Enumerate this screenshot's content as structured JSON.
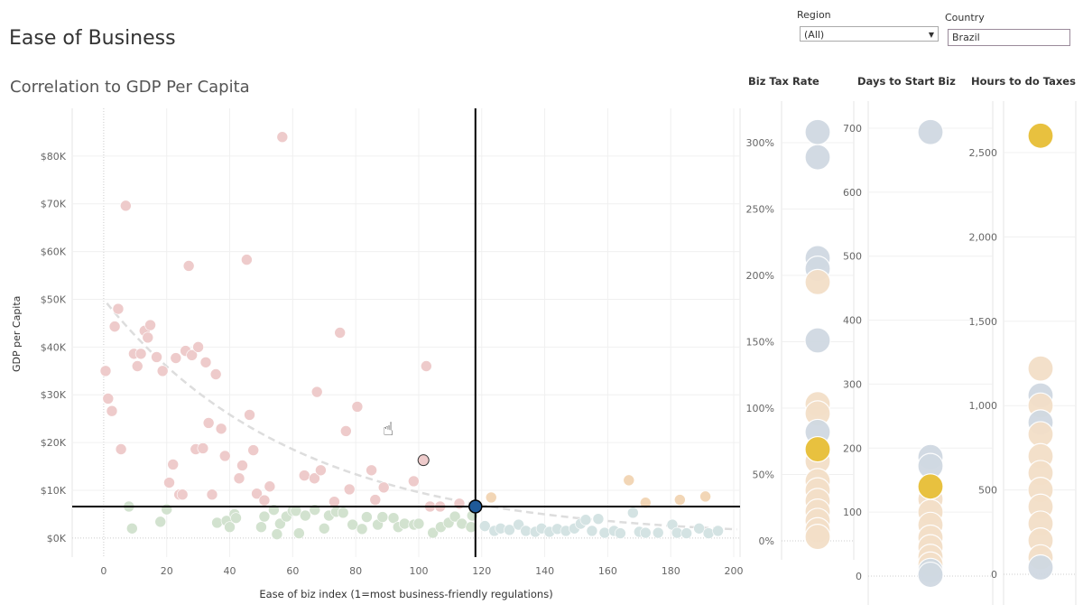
{
  "title": "Ease of Business",
  "subtitle": "Correlation to GDP Per Capita",
  "filters": {
    "region_label": "Region",
    "region_value": "(All)",
    "country_label": "Country",
    "country_value": "Brazil"
  },
  "colors": {
    "pink": "#eecbcb",
    "green": "#d2e2cf",
    "lightblue": "#d4e3e3",
    "beige": "#f3dfc8",
    "bluegray": "#d0d9e2",
    "yellow": "#e8c13f",
    "orange": "#f2d6b6",
    "selected": "#1f5a99"
  },
  "chart_data": [
    {
      "type": "scatter",
      "xlabel": "Ease of biz index (1=most business-friendly regulations)",
      "ylabel": "GDP per Capita",
      "xlim": [
        -10,
        202
      ],
      "ylim": [
        -4,
        90
      ],
      "xticks": [
        "0",
        "20",
        "40",
        "60",
        "80",
        "100",
        "120",
        "140",
        "160",
        "180",
        "200"
      ],
      "yticks": [
        "$0K",
        "$10K",
        "$20K",
        "$30K",
        "$40K",
        "$50K",
        "$60K",
        "$70K",
        "$80K"
      ],
      "grid": true,
      "trend_line": "exponential",
      "reference_lines": {
        "x": 118,
        "y": 6.6
      },
      "highlighted": {
        "country": "Brazil",
        "x": 118,
        "y": 6.6
      },
      "series": [
        {
          "color": "pink",
          "points": [
            [
              0.6,
              35
            ],
            [
              1.4,
              29.2
            ],
            [
              2.6,
              26.6
            ],
            [
              3.5,
              44.3
            ],
            [
              4.6,
              48
            ],
            [
              5.5,
              18.6
            ],
            [
              7,
              69.6
            ],
            [
              9.6,
              38.6
            ],
            [
              10.7,
              36
            ],
            [
              11.8,
              38.6
            ],
            [
              13,
              43.4
            ],
            [
              14,
              42
            ],
            [
              14.8,
              44.6
            ],
            [
              16.8,
              37.9
            ],
            [
              18.7,
              35
            ],
            [
              20.8,
              11.6
            ],
            [
              22,
              15.4
            ],
            [
              22.9,
              37.7
            ],
            [
              24,
              9.1
            ],
            [
              25,
              9.1
            ],
            [
              26,
              39.2
            ],
            [
              27,
              57
            ],
            [
              28,
              38.3
            ],
            [
              29.2,
              18.6
            ],
            [
              30,
              40
            ],
            [
              31.5,
              18.8
            ],
            [
              32.4,
              36.8
            ],
            [
              33.3,
              24.1
            ],
            [
              34.4,
              9.1
            ],
            [
              35.6,
              34.3
            ],
            [
              37.3,
              22.9
            ],
            [
              38.5,
              17.2
            ],
            [
              43,
              12.5
            ],
            [
              44,
              15.2
            ],
            [
              45.4,
              58.3
            ],
            [
              46.3,
              25.8
            ],
            [
              47.5,
              18.4
            ],
            [
              48.6,
              9.3
            ],
            [
              51,
              7.9
            ],
            [
              52.7,
              10.8
            ],
            [
              56.7,
              84
            ],
            [
              63.7,
              13.1
            ],
            [
              66.9,
              12.5
            ],
            [
              67.7,
              30.6
            ],
            [
              68.9,
              14.2
            ],
            [
              73.2,
              7.6
            ],
            [
              75,
              43
            ],
            [
              76.9,
              22.4
            ],
            [
              78,
              10.2
            ],
            [
              80.5,
              27.5
            ],
            [
              85,
              14.2
            ],
            [
              86.2,
              8
            ],
            [
              88.9,
              10.6
            ],
            [
              98.4,
              11.9
            ],
            [
              102.4,
              36
            ],
            [
              103.6,
              6.6
            ],
            [
              106.8,
              6.6
            ],
            [
              112.9,
              7.2
            ],
            [
              101.5,
              16.3
            ]
          ]
        },
        {
          "color": "orange",
          "points": [
            [
              123,
              8.5
            ],
            [
              166.7,
              12.1
            ],
            [
              172,
              7.4
            ],
            [
              182.9,
              8
            ],
            [
              191,
              8.7
            ]
          ]
        },
        {
          "color": "green",
          "points": [
            [
              8,
              6.6
            ],
            [
              9,
              2
            ],
            [
              18,
              3.4
            ],
            [
              20,
              6
            ],
            [
              36,
              3.2
            ],
            [
              39,
              3.6
            ],
            [
              40,
              2.3
            ],
            [
              41.5,
              5
            ],
            [
              42,
              4.2
            ],
            [
              50,
              2.3
            ],
            [
              51,
              4.5
            ],
            [
              54,
              5.9
            ],
            [
              55,
              0.8
            ],
            [
              56,
              3
            ],
            [
              58,
              4.5
            ],
            [
              60,
              5.7
            ],
            [
              61,
              5.7
            ],
            [
              62,
              1
            ],
            [
              64,
              4.7
            ],
            [
              67,
              5.9
            ],
            [
              70,
              2
            ],
            [
              71.5,
              4.7
            ],
            [
              73.8,
              5.5
            ],
            [
              76,
              5.3
            ],
            [
              79,
              2.8
            ],
            [
              82,
              1.9
            ],
            [
              83.5,
              4.4
            ],
            [
              87,
              2.8
            ],
            [
              88.5,
              4.4
            ],
            [
              92,
              4.2
            ],
            [
              93.5,
              2.3
            ],
            [
              95.5,
              3
            ],
            [
              98.5,
              2.8
            ],
            [
              100,
              3
            ],
            [
              104.5,
              1.1
            ],
            [
              107,
              2.3
            ],
            [
              109.5,
              3.2
            ],
            [
              111.5,
              4.5
            ],
            [
              113.7,
              3
            ],
            [
              116.6,
              2.3
            ],
            [
              117,
              4.7
            ]
          ]
        },
        {
          "color": "lightblue",
          "points": [
            [
              121,
              2.5
            ],
            [
              124,
              1.5
            ],
            [
              126,
              2
            ],
            [
              128.8,
              1.7
            ],
            [
              131.7,
              2.8
            ],
            [
              134,
              1.5
            ],
            [
              137,
              1.3
            ],
            [
              139,
              2
            ],
            [
              141.5,
              1.3
            ],
            [
              144,
              1.9
            ],
            [
              146.7,
              1.5
            ],
            [
              149.4,
              2
            ],
            [
              151.4,
              3
            ],
            [
              153,
              3.8
            ],
            [
              155,
              1.5
            ],
            [
              157,
              4
            ],
            [
              159,
              1.1
            ],
            [
              162,
              1.5
            ],
            [
              164,
              1
            ],
            [
              168,
              5.3
            ],
            [
              170,
              1.3
            ],
            [
              172,
              1.1
            ],
            [
              176,
              1.1
            ],
            [
              180.5,
              2.8
            ],
            [
              182,
              1.1
            ],
            [
              185,
              1
            ],
            [
              189,
              2
            ],
            [
              192,
              1
            ],
            [
              195,
              1.5
            ]
          ]
        }
      ]
    },
    {
      "type": "scatter",
      "title": "Biz Tax Rate",
      "ylim": [
        -3,
        330
      ],
      "yticks": [
        "0%",
        "50%",
        "100%",
        "150%",
        "200%",
        "250%",
        "300%"
      ],
      "tick_values": [
        0,
        50,
        100,
        150,
        200,
        250,
        300
      ],
      "points": [
        [
          308,
          "bluegray"
        ],
        [
          289,
          "bluegray"
        ],
        [
          213,
          "bluegray"
        ],
        [
          205,
          "bluegray"
        ],
        [
          195,
          "beige"
        ],
        [
          151,
          "bluegray"
        ],
        [
          103,
          "beige"
        ],
        [
          96,
          "beige"
        ],
        [
          82,
          "bluegray"
        ],
        [
          60,
          "beige"
        ],
        [
          45,
          "beige"
        ],
        [
          38,
          "beige"
        ],
        [
          30,
          "beige"
        ],
        [
          22,
          "beige"
        ],
        [
          15,
          "beige"
        ],
        [
          8,
          "beige"
        ],
        [
          3,
          "beige"
        ],
        [
          69,
          "yellow"
        ]
      ]
    },
    {
      "type": "scatter",
      "title": "Days to Start Biz",
      "ylim": [
        -5,
        740
      ],
      "yticks": [
        "0",
        "100",
        "200",
        "300",
        "400",
        "500",
        "600",
        "700"
      ],
      "tick_values": [
        0,
        100,
        200,
        300,
        400,
        500,
        600,
        700
      ],
      "points": [
        [
          694,
          "bluegray"
        ],
        [
          186,
          "bluegray"
        ],
        [
          172,
          "bluegray"
        ],
        [
          120,
          "beige"
        ],
        [
          100,
          "beige"
        ],
        [
          80,
          "beige"
        ],
        [
          60,
          "beige"
        ],
        [
          45,
          "beige"
        ],
        [
          30,
          "beige"
        ],
        [
          18,
          "beige"
        ],
        [
          8,
          "bluegray"
        ],
        [
          2,
          "bluegray"
        ],
        [
          140,
          "yellow"
        ]
      ]
    },
    {
      "type": "scatter",
      "title": "Hours to do Taxes",
      "ylim": [
        -30,
        2700
      ],
      "yticks": [
        "0",
        "500",
        "1,000",
        "1,500",
        "2,000",
        "2,500"
      ],
      "tick_values": [
        0,
        500,
        1000,
        1500,
        2000,
        2500
      ],
      "points": [
        [
          1220,
          "beige"
        ],
        [
          1060,
          "bluegray"
        ],
        [
          1000,
          "beige"
        ],
        [
          900,
          "bluegray"
        ],
        [
          830,
          "beige"
        ],
        [
          700,
          "beige"
        ],
        [
          600,
          "beige"
        ],
        [
          500,
          "beige"
        ],
        [
          400,
          "beige"
        ],
        [
          300,
          "beige"
        ],
        [
          200,
          "beige"
        ],
        [
          100,
          "beige"
        ],
        [
          40,
          "bluegray"
        ],
        [
          2600,
          "yellow"
        ]
      ]
    }
  ]
}
